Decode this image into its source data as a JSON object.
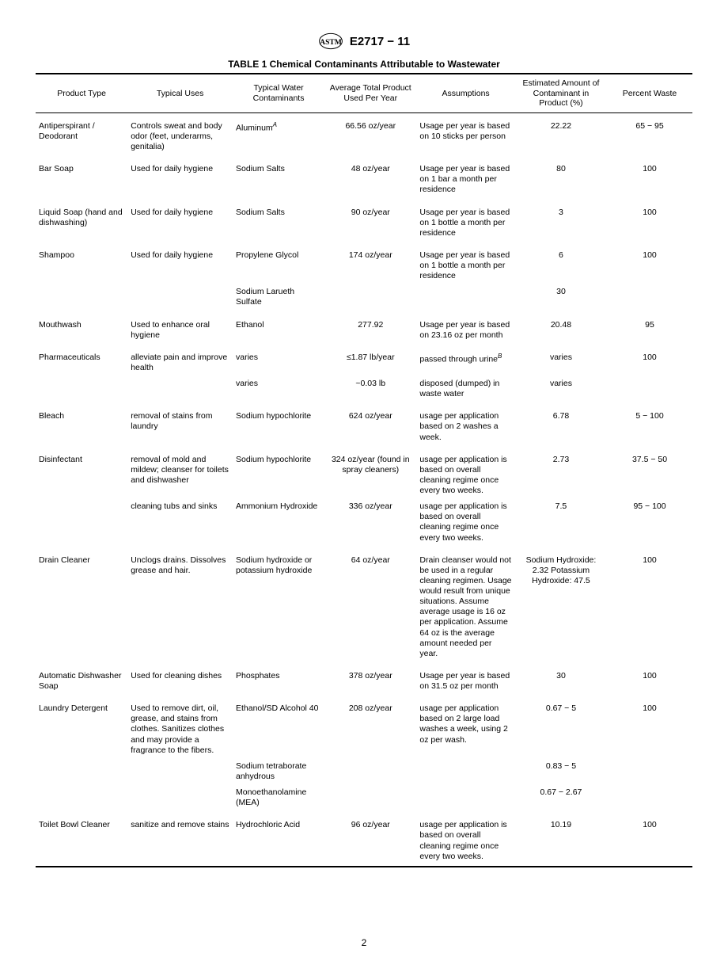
{
  "header": {
    "doc_id": "E2717 − 11"
  },
  "table": {
    "title": "TABLE 1 Chemical Contaminants Attributable to Wastewater",
    "columns": [
      "Product Type",
      "Typical Uses",
      "Typical Water Contaminants",
      "Average Total Product Used Per Year",
      "Assumptions",
      "Estimated Amount of Contaminant in Product (%)",
      "Percent Waste"
    ],
    "rows": [
      {
        "product": "Antiperspirant / Deodorant",
        "uses": "Controls sweat and body odor (feet, underarms, genitalia)",
        "contam": "Aluminum",
        "contam_sup": "A",
        "avg": "66.56 oz/year",
        "assump": "Usage per year is based on 10 sticks per person",
        "amount": "22.22",
        "waste": "65 − 95"
      },
      {
        "product": "Bar Soap",
        "uses": "Used for daily hygiene",
        "contam": "Sodium Salts",
        "avg": "48 oz/year",
        "assump": "Usage per year is based on 1 bar a month per residence",
        "amount": "80",
        "waste": "100"
      },
      {
        "product": "Liquid Soap (hand and dishwashing)",
        "uses": "Used for daily hygiene",
        "contam": "Sodium Salts",
        "avg": "90 oz/year",
        "assump": "Usage per year is based on 1 bottle a month per residence",
        "amount": "3",
        "waste": "100"
      },
      {
        "product": "Shampoo",
        "uses": "Used for daily hygiene",
        "contam": "Propylene Glycol",
        "avg": "174 oz/year",
        "assump": "Usage per year is based on 1 bottle a month per residence",
        "amount": "6",
        "waste": "100",
        "sub": [
          {
            "contam": "Sodium Larueth Sulfate",
            "amount": "30"
          }
        ]
      },
      {
        "product": "Mouthwash",
        "uses": "Used to enhance oral hygiene",
        "contam": "Ethanol",
        "avg": "277.92",
        "assump": "Usage per year is based on 23.16 oz per month",
        "amount": "20.48",
        "waste": "95"
      },
      {
        "product": "Pharmaceuticals",
        "uses": "alleviate pain and improve health",
        "contam": "varies",
        "avg": "≤1.87 lb/year",
        "assump": "passed through urine",
        "assump_sup": "B",
        "amount": "varies",
        "waste": "100",
        "sub": [
          {
            "contam": "varies",
            "avg": "~0.03 lb",
            "assump": "disposed (dumped) in waste water",
            "amount": "varies"
          }
        ]
      },
      {
        "product": "Bleach",
        "uses": "removal of stains from laundry",
        "contam": "Sodium hypochlorite",
        "avg": "624 oz/year",
        "assump": "usage per application based on 2 washes a week.",
        "amount": "6.78",
        "waste": "5 − 100"
      },
      {
        "product": "Disinfectant",
        "uses": "removal of mold and mildew; cleanser for toilets and dishwasher",
        "contam": "Sodium hypochlorite",
        "avg": "324 oz/year (found in spray cleaners)",
        "assump": "usage per application is based on overall cleaning regime once every two weeks.",
        "amount": "2.73",
        "waste": "37.5 − 50",
        "sub": [
          {
            "uses": "cleaning tubs and sinks",
            "contam": "Ammonium Hydroxide",
            "avg": "336 oz/year",
            "assump": "usage per application is based on overall cleaning regime once every two weeks.",
            "amount": "7.5",
            "waste": "95 − 100"
          }
        ]
      },
      {
        "product": "Drain Cleaner",
        "uses": "Unclogs drains. Dissolves grease and hair.",
        "contam": "Sodium hydroxide or potassium hydroxide",
        "avg": "64 oz/year",
        "assump": "Drain cleanser would not be used in a regular cleaning regimen. Usage would result from unique situations. Assume average usage is 16 oz per application. Assume 64 oz is the average amount needed per year.",
        "amount": "Sodium Hydroxide: 2.32 Potassium Hydroxide: 47.5",
        "waste": "100"
      },
      {
        "product": "Automatic Dishwasher Soap",
        "uses": "Used for cleaning dishes",
        "contam": "Phosphates",
        "avg": "378 oz/year",
        "assump": "Usage per year is based on 31.5 oz per month",
        "amount": "30",
        "waste": "100"
      },
      {
        "product": "Laundry Detergent",
        "uses": "Used to remove dirt, oil, grease, and stains from clothes. Sanitizes clothes and may provide a fragrance to the fibers.",
        "contam": "Ethanol/SD Alcohol 40",
        "avg": "208 oz/year",
        "assump": "usage per application based on 2 large load washes a week, using 2 oz per wash.",
        "amount": "0.67 − 5",
        "waste": "100",
        "sub": [
          {
            "contam": "Sodium tetraborate anhydrous",
            "amount": "0.83 − 5"
          },
          {
            "contam": "Monoethanolamine (MEA)",
            "amount": "0.67 − 2.67"
          }
        ]
      },
      {
        "product": "Toilet Bowl Cleaner",
        "uses": "sanitize and remove stains",
        "contam": "Hydrochloric Acid",
        "avg": "96 oz/year",
        "assump": "usage per application is based on overall cleaning regime once every two weeks.",
        "amount": "10.19",
        "waste": "100"
      }
    ]
  },
  "page_number": "2"
}
